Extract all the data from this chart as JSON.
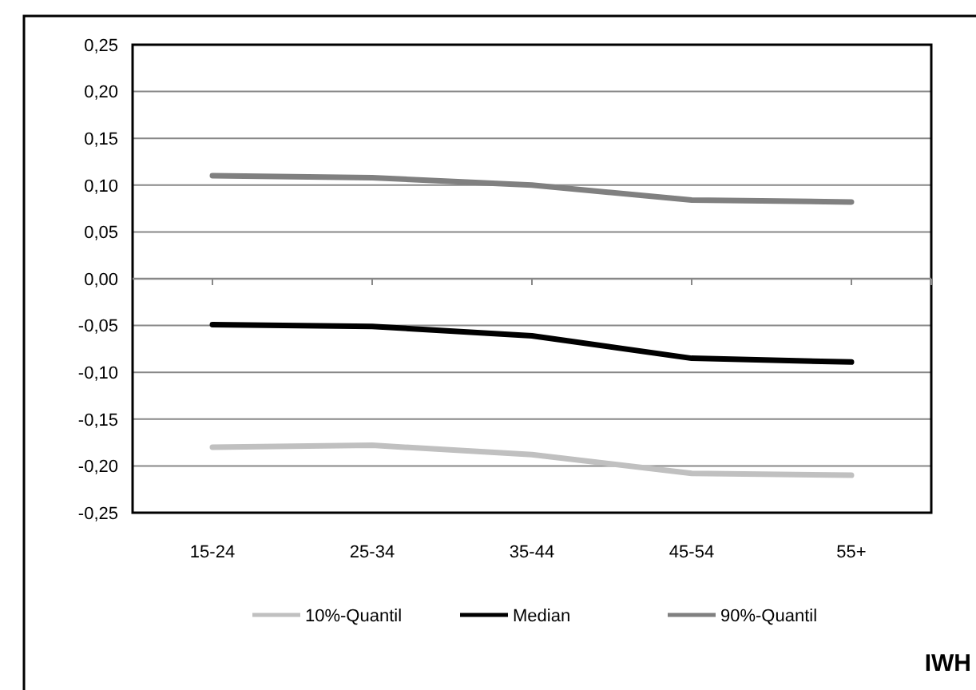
{
  "chart_data": {
    "type": "line",
    "categories": [
      "15-24",
      "25-34",
      "35-44",
      "45-54",
      "55+"
    ],
    "series": [
      {
        "name": "10%-Quantil",
        "color": "#c0c0c0",
        "values": [
          -0.18,
          -0.178,
          -0.188,
          -0.208,
          -0.21
        ]
      },
      {
        "name": "Median",
        "color": "#000000",
        "values": [
          -0.049,
          -0.051,
          -0.061,
          -0.085,
          -0.089
        ]
      },
      {
        "name": "90%-Quantil",
        "color": "#808080",
        "values": [
          0.11,
          0.108,
          0.1,
          0.084,
          0.082
        ]
      }
    ],
    "ylim": [
      -0.25,
      0.25
    ],
    "yticks": [
      {
        "value": -0.25,
        "label": "-0,25"
      },
      {
        "value": -0.2,
        "label": "-0,20"
      },
      {
        "value": -0.15,
        "label": "-0,15"
      },
      {
        "value": -0.1,
        "label": "-0,10"
      },
      {
        "value": -0.05,
        "label": "-0,05"
      },
      {
        "value": 0,
        "label": "0,00"
      },
      {
        "value": 0.05,
        "label": "0,05"
      },
      {
        "value": 0.1,
        "label": "0,10"
      },
      {
        "value": 0.15,
        "label": "0,15"
      },
      {
        "value": 0.2,
        "label": "0,20"
      },
      {
        "value": 0.25,
        "label": "0,25"
      }
    ],
    "grid": "y",
    "legend": "bottom",
    "marker": "none",
    "line_style": "solid",
    "annotations": [
      "IWH"
    ]
  }
}
